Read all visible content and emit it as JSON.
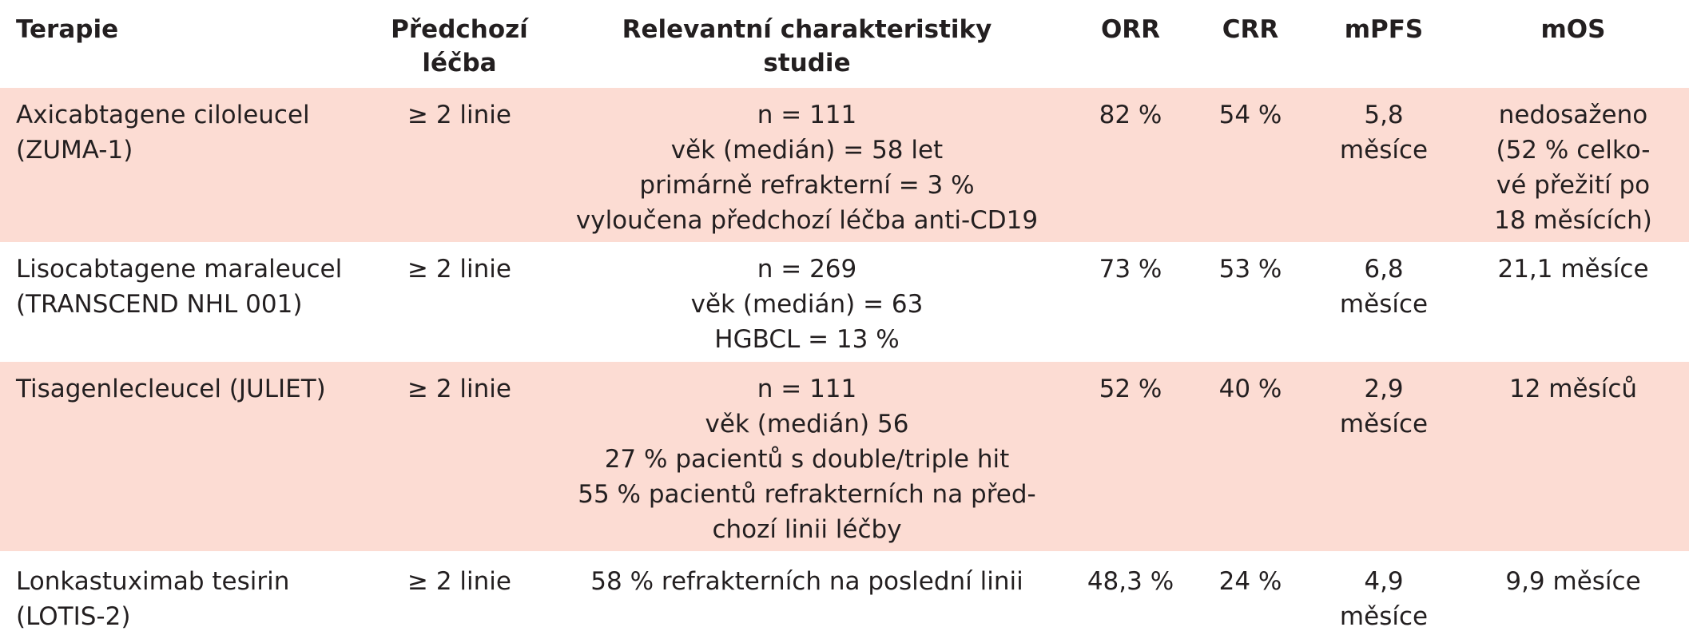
{
  "headers": {
    "terapie": "Terapie",
    "lecba": "Předchozí\nléčba",
    "relevantni": "Relevantní charakteristiky\nstudie",
    "orr": "ORR",
    "crr": "CRR",
    "mpfs": "mPFS",
    "mos": "mOS"
  },
  "rows": [
    {
      "terapie": "Axicabtagene ciloleucel\n(ZUMA-1)",
      "lecba": "≥ 2 linie",
      "relevantni": "n = 111\nvěk (medián) = 58 let\nprimárně refrakterní = 3 %\nvyloučena předchozí léčba anti-CD19",
      "orr": "82 %",
      "crr": "54 %",
      "mpfs": "5,8 měsíce",
      "mos": "nedosaženo\n(52 % celko-\nvé přežití po\n18 měsících)"
    },
    {
      "terapie": "Lisocabtagene maraleucel\n(TRANSCEND NHL 001)",
      "lecba": "≥ 2 linie",
      "relevantni": "n = 269\nvěk (medián) = 63\nHGBCL = 13 %",
      "orr": "73 %",
      "crr": "53 %",
      "mpfs": "6,8 měsíce",
      "mos": "21,1 měsíce"
    },
    {
      "terapie": "Tisagenlecleucel (JULIET)",
      "lecba": "≥ 2 linie",
      "relevantni": "n = 111\nvěk (medián) 56\n27 % pacientů s double/triple hit\n55 % pacientů refrakterních na před-\nchozí linii léčby",
      "orr": "52 %",
      "crr": "40 %",
      "mpfs": "2,9 měsíce",
      "mos": "12 měsíců"
    },
    {
      "terapie": "Lonkastuximab tesirin\n(LOTIS-2)",
      "lecba": "≥ 2 linie",
      "relevantni": "58 % refrakterních na poslední linii",
      "orr": "48,3 %",
      "crr": "24 %",
      "mpfs": "4,9 měsíce",
      "mos": "9,9 měsíce"
    }
  ]
}
